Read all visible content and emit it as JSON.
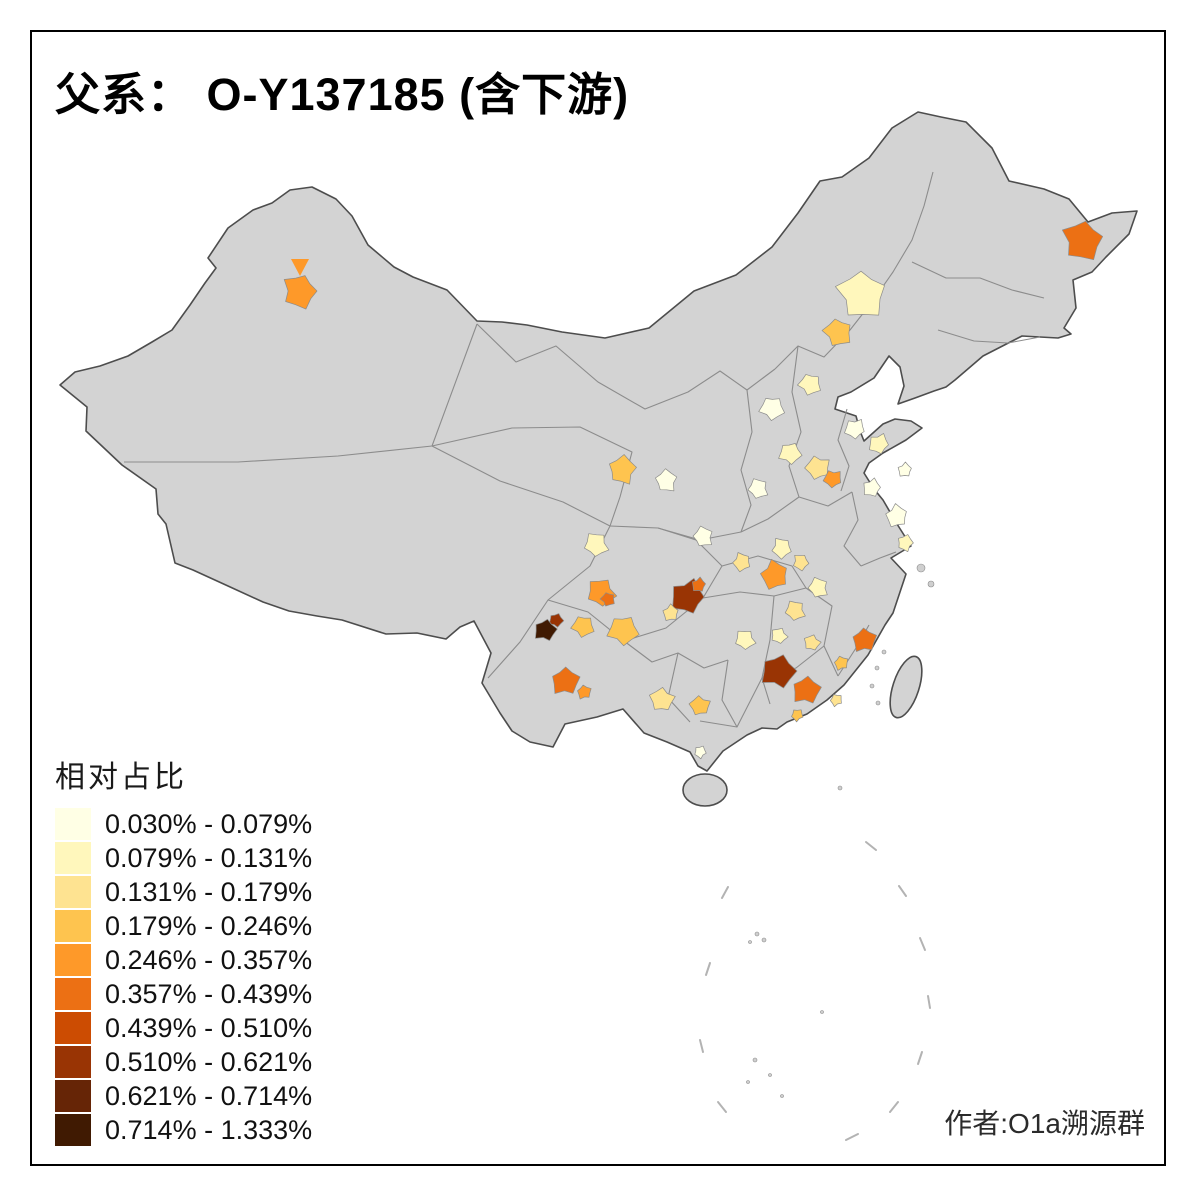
{
  "title": "父系： O-Y137185 (含下游)",
  "legend": {
    "title": "相对占比",
    "items": [
      {
        "range": "0.030% - 0.079%",
        "color": "#FFFFE5"
      },
      {
        "range": "0.079% - 0.131%",
        "color": "#FFF7BC"
      },
      {
        "range": "0.131% - 0.179%",
        "color": "#FEE391"
      },
      {
        "range": "0.179% - 0.246%",
        "color": "#FEC44F"
      },
      {
        "range": "0.246% - 0.357%",
        "color": "#FE9929"
      },
      {
        "range": "0.357% - 0.439%",
        "color": "#EC7014"
      },
      {
        "range": "0.439% - 0.510%",
        "color": "#CC4C02"
      },
      {
        "range": "0.510% - 0.621%",
        "color": "#993404"
      },
      {
        "range": "0.621% - 0.714%",
        "color": "#662506"
      },
      {
        "range": "0.714% - 1.333%",
        "color": "#401A02"
      }
    ]
  },
  "attribution": "作者:O1a溯源群",
  "map": {
    "base_color": "#d3d3d3",
    "national_border_color": "#4d4d4d",
    "province_border_color": "#8c8c8c",
    "background": "#ffffff"
  }
}
